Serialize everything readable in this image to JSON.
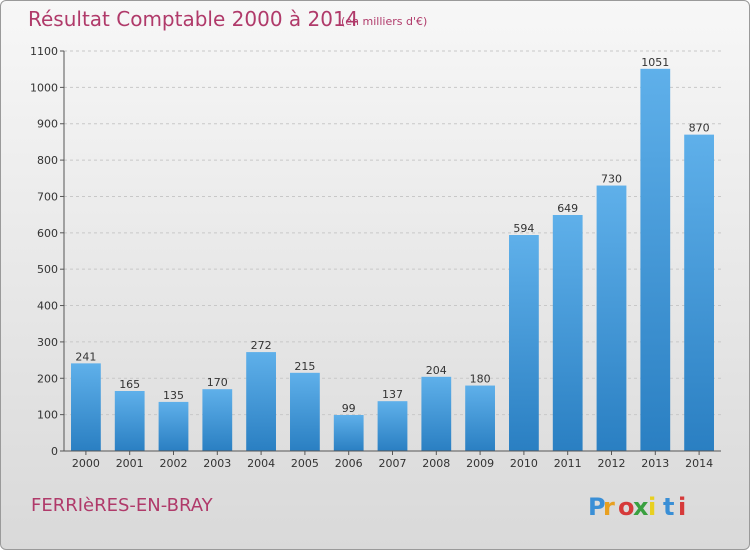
{
  "title": "Résultat Comptable 2000 à 2014",
  "subtitle": "(en milliers d'€)",
  "commune": "FERRIèRES-EN-BRAY",
  "logo": {
    "text": "Proxiti",
    "colors": [
      "#3a8fd6",
      "#e8a020",
      "#d63a3a",
      "#3aa040",
      "#e8d020",
      "#3a8fd6",
      "#d63a3a"
    ]
  },
  "chart_data": {
    "type": "bar",
    "categories": [
      "2000",
      "2001",
      "2002",
      "2003",
      "2004",
      "2005",
      "2006",
      "2007",
      "2008",
      "2009",
      "2010",
      "2011",
      "2012",
      "2013",
      "2014"
    ],
    "values": [
      241,
      165,
      135,
      170,
      272,
      215,
      99,
      137,
      204,
      180,
      594,
      649,
      730,
      1051,
      870
    ],
    "title": "Résultat Comptable 2000 à 2014",
    "subtitle": "(en milliers d'€)",
    "ylim": [
      0,
      1100
    ],
    "yticks": [
      0,
      100,
      200,
      300,
      400,
      500,
      600,
      700,
      800,
      900,
      1000,
      1100
    ],
    "grid": true,
    "bar_color": "#3d95d8"
  }
}
